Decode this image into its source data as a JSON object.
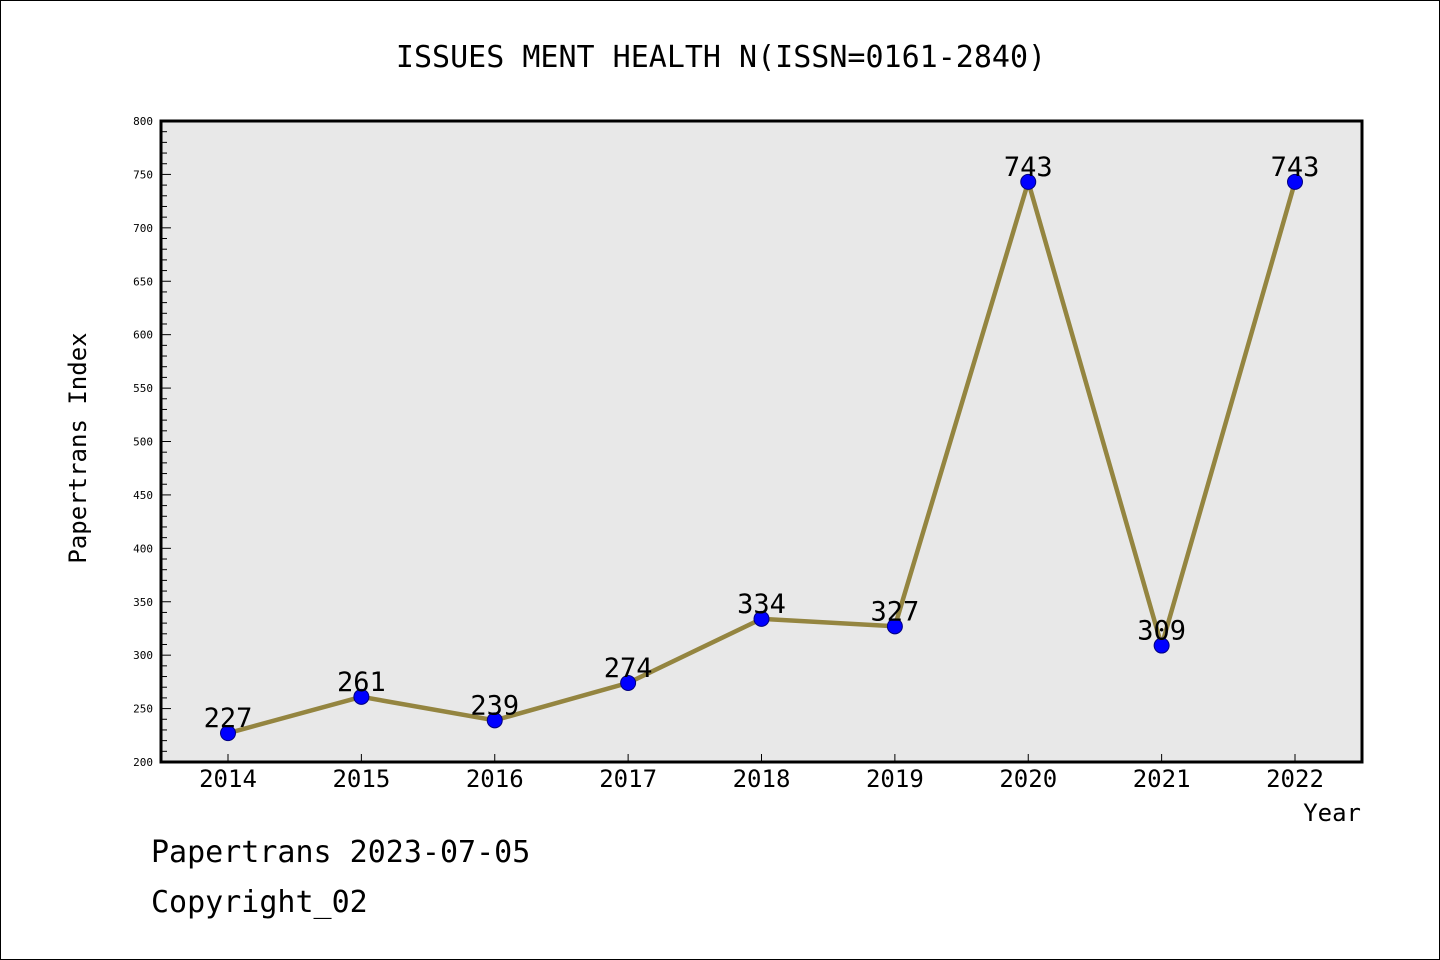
{
  "footer": {
    "date_text": "Papertrans 2023-07-05",
    "copyright_text": "Copyright_02"
  },
  "colors": {
    "line": "#948540",
    "marker_fill": "#0000ff",
    "marker_stroke": "#00007f",
    "plot_background": "#e8e8e8"
  },
  "chart_data": {
    "type": "line",
    "title": "ISSUES MENT HEALTH N(ISSN=0161-2840)",
    "xlabel": "Year",
    "ylabel": "Papertrans Index",
    "x": [
      "2014",
      "2015",
      "2016",
      "2017",
      "2018",
      "2019",
      "2020",
      "2021",
      "2022"
    ],
    "series": [
      {
        "values": [
          227,
          261,
          239,
          274,
          334,
          327,
          743,
          309,
          743
        ]
      }
    ],
    "data_labels": [
      "227",
      "261",
      "239",
      "274",
      "334",
      "327",
      "743",
      "309",
      "743"
    ],
    "ylim": [
      200,
      800
    ],
    "yticks": [
      200,
      250,
      300,
      350,
      400,
      450,
      500,
      550,
      600,
      650,
      700,
      750,
      800
    ],
    "grid": false,
    "legend": "none"
  }
}
